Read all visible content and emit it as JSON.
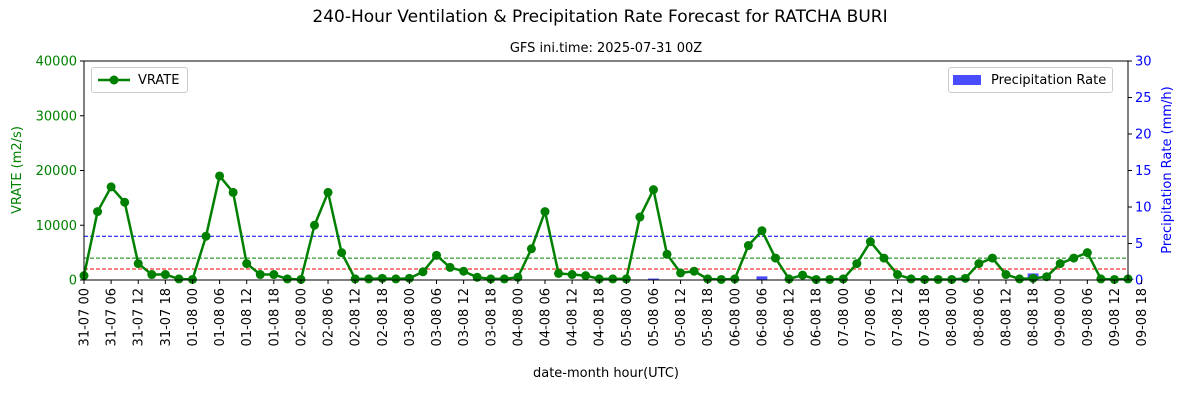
{
  "chart_data": {
    "type": "line",
    "title": "240-Hour Ventilation & Precipitation Rate Forecast for RATCHA BURI",
    "subtitle": "GFS ini.time: 2025-07-31 00Z",
    "xlabel": "date-month hour(UTC)",
    "ylabel_left": "VRATE (m2/s)",
    "ylabel_right": "Precipitation Rate (mm/h)",
    "ylim_left": [
      0,
      40000
    ],
    "ylim_right": [
      0,
      30
    ],
    "yticks_left": [
      "0",
      "10000",
      "20000",
      "30000",
      "40000"
    ],
    "yticks_right": [
      "0",
      "5",
      "10",
      "15",
      "20",
      "25",
      "30"
    ],
    "x_tick_labels": [
      "31-07 00",
      "31-07 06",
      "31-07 12",
      "31-07 18",
      "01-08 00",
      "01-08 06",
      "01-08 12",
      "01-08 18",
      "02-08 00",
      "02-08 06",
      "02-08 12",
      "02-08 18",
      "03-08 00",
      "03-08 06",
      "03-08 12",
      "03-08 18",
      "04-08 00",
      "04-08 06",
      "04-08 12",
      "04-08 18",
      "05-08 00",
      "05-08 06",
      "05-08 12",
      "05-08 18",
      "06-08 00",
      "06-08 06",
      "06-08 12",
      "06-08 18",
      "07-08 00",
      "07-08 06",
      "07-08 12",
      "07-08 18",
      "08-08 00",
      "08-08 06",
      "08-08 12",
      "08-08 18",
      "09-08 00",
      "09-08 06",
      "09-08 12",
      "09-08 18"
    ],
    "x_step_hours": 3,
    "legend_line": "VRATE",
    "legend_bar": "Precipitation Rate",
    "legend_line_position": "upper-left",
    "legend_bar_position": "upper-right",
    "vrate": [
      800,
      12500,
      17000,
      14200,
      3000,
      1000,
      1000,
      200,
      100,
      8000,
      19000,
      16000,
      3000,
      1000,
      1000,
      200,
      100,
      10000,
      16000,
      5000,
      200,
      200,
      300,
      200,
      300,
      1500,
      4500,
      2300,
      1600,
      500,
      200,
      200,
      500,
      5700,
      12500,
      1200,
      1000,
      800,
      200,
      200,
      200,
      11500,
      16500,
      4700,
      1300,
      1600,
      200,
      100,
      200,
      6300,
      9000,
      4000,
      200,
      900,
      100,
      100,
      200,
      3000,
      7000,
      4000,
      1000,
      200,
      100,
      100,
      100,
      300,
      3000,
      4000,
      1000,
      200,
      300,
      600,
      3000,
      4000,
      5000,
      200,
      100,
      200
    ],
    "precip": [
      0,
      0,
      0,
      0,
      0,
      0,
      0,
      0,
      0,
      0,
      0,
      0,
      0,
      0,
      0,
      0,
      0,
      0,
      0,
      0,
      0,
      0,
      0,
      0,
      0,
      0,
      0,
      0,
      0,
      0,
      0,
      0,
      0,
      0,
      0,
      0,
      0,
      0,
      0,
      0,
      0,
      0,
      0.2,
      0,
      0,
      0,
      0,
      0,
      0,
      0,
      0.5,
      0,
      0,
      0,
      0,
      0,
      0,
      0,
      0,
      0,
      0,
      0,
      0,
      0,
      0,
      0,
      0,
      0,
      0,
      0,
      0.9,
      0,
      0,
      0,
      0,
      0,
      0,
      0.2
    ],
    "reference_lines": [
      {
        "axis": "left",
        "value": 2000,
        "color": "#ff0000"
      },
      {
        "axis": "left",
        "value": 4000,
        "color": "#008000"
      },
      {
        "axis": "left",
        "value": 8000,
        "color": "#0000ff"
      }
    ],
    "colors": {
      "line": "#008000",
      "bar": "#4b4bff",
      "left_axis": "#008000",
      "right_axis": "#0000ff"
    },
    "grid": false
  }
}
